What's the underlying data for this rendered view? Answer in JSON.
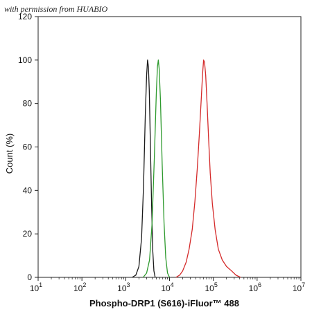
{
  "watermark": "with permission from HUABIO",
  "chart_data": {
    "type": "line",
    "xlabel": "Phospho-DRP1 (S616)-iFluor™ 488",
    "ylabel": "Count  (%)",
    "xscale": "log",
    "xlim": [
      10,
      10000000
    ],
    "ylim": [
      0,
      120
    ],
    "x_ticks": [
      {
        "value": 10,
        "base": "10",
        "exp": "1"
      },
      {
        "value": 100,
        "base": "10",
        "exp": "2"
      },
      {
        "value": 1000,
        "base": "10",
        "exp": "3"
      },
      {
        "value": 10000,
        "base": "10",
        "exp": "4"
      },
      {
        "value": 100000,
        "base": "10",
        "exp": "5"
      },
      {
        "value": 1000000,
        "base": "10",
        "exp": "6"
      },
      {
        "value": 10000000,
        "base": "10",
        "exp": "7"
      }
    ],
    "y_ticks": [
      0,
      20,
      40,
      60,
      80,
      100,
      120
    ],
    "grid": false,
    "legend": "none",
    "series": [
      {
        "color": "#1a1a1a",
        "x": [
          1400,
          1700,
          2000,
          2300,
          2550,
          2800,
          3000,
          3150,
          3300,
          3450,
          3650,
          3900,
          4150,
          4400,
          4700
        ],
        "y": [
          0,
          1,
          5,
          18,
          42,
          75,
          93,
          100,
          97,
          86,
          62,
          33,
          12,
          3,
          0
        ]
      },
      {
        "color": "#2e9a2e",
        "x": [
          2500,
          3000,
          3500,
          4000,
          4500,
          5000,
          5300,
          5550,
          5800,
          6200,
          6800,
          7500,
          8200,
          9000,
          10000
        ],
        "y": [
          0,
          2,
          8,
          25,
          55,
          85,
          97,
          100,
          96,
          82,
          52,
          25,
          9,
          2,
          0
        ]
      },
      {
        "color": "#d42a2a",
        "x": [
          14000,
          17000,
          20000,
          24000,
          28000,
          33000,
          38000,
          43000,
          48000,
          53000,
          57000,
          60000,
          63000,
          67000,
          72000,
          78000,
          85000,
          95000,
          110000,
          130000,
          160000,
          200000,
          260000,
          330000,
          420000
        ],
        "y": [
          0,
          1,
          3,
          7,
          13,
          22,
          35,
          50,
          66,
          82,
          94,
          100,
          99,
          93,
          80,
          64,
          48,
          34,
          22,
          13,
          8,
          5,
          3,
          1,
          0
        ]
      }
    ]
  }
}
